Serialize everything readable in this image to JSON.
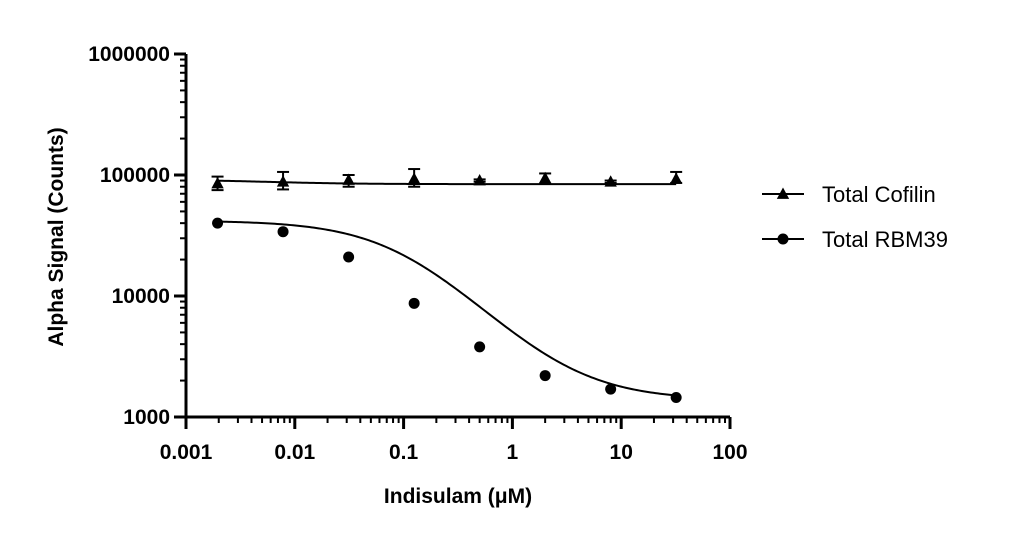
{
  "chart_data": {
    "type": "scatter",
    "title": "",
    "xlabel": "Indisulam (μM)",
    "ylabel": "Alpha Signal (Counts)",
    "xscale": "log",
    "yscale": "log",
    "xlim": [
      0.001,
      100
    ],
    "ylim": [
      1000,
      1000000
    ],
    "x_ticks": [
      {
        "value": 0.001,
        "label": "0.001"
      },
      {
        "value": 0.01,
        "label": "0.01"
      },
      {
        "value": 0.1,
        "label": "0.1"
      },
      {
        "value": 1,
        "label": "1"
      },
      {
        "value": 10,
        "label": "10"
      },
      {
        "value": 100,
        "label": "100"
      }
    ],
    "y_ticks": [
      {
        "value": 1000,
        "label": "1000"
      },
      {
        "value": 10000,
        "label": "10000"
      },
      {
        "value": 100000,
        "label": "100000"
      },
      {
        "value": 1000000,
        "label": "1000000"
      }
    ],
    "legend_position": "right",
    "series": [
      {
        "name": "Total Cofilin",
        "marker": "triangle",
        "x": [
          0.00195,
          0.0078,
          0.03125,
          0.125,
          0.5,
          2,
          8,
          32
        ],
        "y": [
          85000,
          88000,
          91000,
          93000,
          90000,
          94000,
          88000,
          93000
        ],
        "err_low": [
          75000,
          76000,
          80000,
          80000,
          88000,
          85000,
          86000,
          86000
        ],
        "err_high": [
          97000,
          106000,
          100000,
          112000,
          92000,
          103000,
          90000,
          106000
        ],
        "fit": {
          "bottom": 84000,
          "top": 92000,
          "ic50": 0.005,
          "hill": 1.0
        }
      },
      {
        "name": "Total RBM39",
        "marker": "circle",
        "x": [
          0.00195,
          0.0078,
          0.03125,
          0.125,
          0.5,
          2,
          8,
          32
        ],
        "y": [
          40000,
          34000,
          21000,
          8700,
          3800,
          2200,
          1700,
          1450
        ],
        "err_low": [],
        "err_high": [],
        "fit": {
          "top": 42000,
          "bottom": 1380,
          "ic50": 0.1,
          "hill": 1.0
        }
      }
    ]
  },
  "colors": {
    "ink": "#000000",
    "background": "#ffffff"
  }
}
